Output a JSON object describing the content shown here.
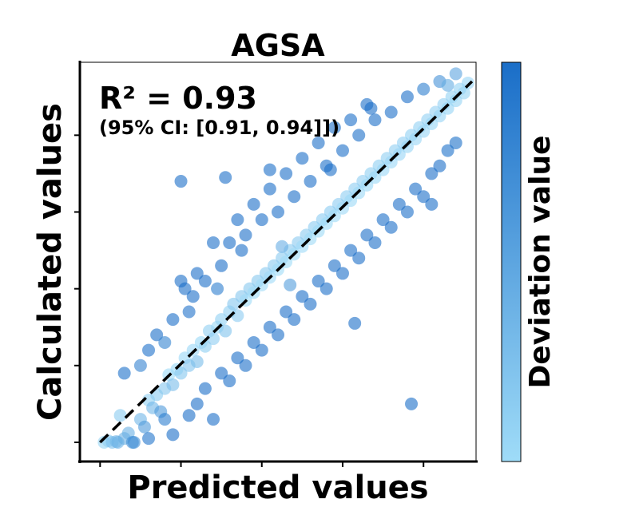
{
  "chart_data": {
    "type": "scatter",
    "title": "AGSA",
    "xlabel": "Predicted values",
    "ylabel": "Calculated values",
    "xlim": [
      -0.25,
      4.65
    ],
    "ylim": [
      -0.25,
      4.95
    ],
    "tick_labels_shown": false,
    "grid": false,
    "reference_line": {
      "style": "dashed",
      "color": "#000000",
      "from": [
        0,
        0
      ],
      "to": [
        4.6,
        4.7
      ]
    },
    "annotation": {
      "r2": "R² = 0.93",
      "ci": "(95% CI: [0.91, 0.94]])"
    },
    "colorbar": {
      "label": "Deviation value",
      "colors": [
        "#9fdcf8",
        "#1a6ec8"
      ]
    },
    "series": [
      {
        "color_scale": "deviation",
        "points": [
          [
            0.05,
            0.0
          ],
          [
            0.1,
            0.02
          ],
          [
            0.15,
            0.0
          ],
          [
            0.2,
            0.01
          ],
          [
            0.22,
            0.0
          ],
          [
            0.3,
            0.05
          ],
          [
            0.35,
            0.12
          ],
          [
            0.42,
            0.0
          ],
          [
            0.5,
            0.3
          ],
          [
            0.55,
            0.2
          ],
          [
            0.6,
            0.55
          ],
          [
            0.65,
            0.45
          ],
          [
            0.7,
            0.62
          ],
          [
            0.75,
            0.4
          ],
          [
            0.8,
            0.7
          ],
          [
            0.85,
            0.88
          ],
          [
            0.9,
            0.75
          ],
          [
            0.95,
            0.95
          ],
          [
            1.0,
            0.9
          ],
          [
            1.05,
            1.1
          ],
          [
            1.1,
            1.0
          ],
          [
            1.15,
            1.2
          ],
          [
            1.2,
            1.05
          ],
          [
            1.25,
            1.3
          ],
          [
            1.3,
            1.25
          ],
          [
            1.35,
            1.45
          ],
          [
            1.4,
            1.35
          ],
          [
            1.45,
            1.5
          ],
          [
            1.5,
            1.6
          ],
          [
            1.55,
            1.45
          ],
          [
            1.6,
            1.7
          ],
          [
            1.65,
            1.8
          ],
          [
            1.7,
            1.65
          ],
          [
            1.75,
            1.9
          ],
          [
            1.8,
            1.85
          ],
          [
            1.85,
            2.0
          ],
          [
            1.9,
            1.95
          ],
          [
            1.95,
            2.1
          ],
          [
            2.0,
            2.05
          ],
          [
            2.05,
            2.2
          ],
          [
            2.1,
            2.15
          ],
          [
            2.15,
            2.3
          ],
          [
            2.2,
            2.25
          ],
          [
            2.25,
            2.4
          ],
          [
            2.3,
            2.35
          ],
          [
            2.35,
            2.5
          ],
          [
            2.4,
            2.45
          ],
          [
            2.45,
            2.6
          ],
          [
            2.5,
            2.55
          ],
          [
            2.55,
            2.7
          ],
          [
            2.6,
            2.65
          ],
          [
            2.65,
            2.8
          ],
          [
            2.7,
            2.75
          ],
          [
            2.75,
            2.9
          ],
          [
            2.8,
            2.85
          ],
          [
            2.85,
            3.0
          ],
          [
            2.9,
            2.95
          ],
          [
            2.95,
            3.1
          ],
          [
            3.0,
            3.05
          ],
          [
            3.05,
            3.2
          ],
          [
            3.1,
            3.15
          ],
          [
            3.15,
            3.3
          ],
          [
            3.2,
            3.25
          ],
          [
            3.25,
            3.4
          ],
          [
            3.3,
            3.35
          ],
          [
            3.35,
            3.5
          ],
          [
            3.4,
            3.45
          ],
          [
            3.45,
            3.6
          ],
          [
            3.5,
            3.55
          ],
          [
            3.55,
            3.7
          ],
          [
            3.6,
            3.65
          ],
          [
            3.65,
            3.8
          ],
          [
            3.7,
            3.75
          ],
          [
            3.75,
            3.9
          ],
          [
            3.8,
            3.85
          ],
          [
            3.85,
            4.0
          ],
          [
            3.9,
            3.95
          ],
          [
            3.95,
            4.1
          ],
          [
            4.0,
            4.05
          ],
          [
            4.05,
            4.2
          ],
          [
            4.1,
            4.15
          ],
          [
            4.15,
            4.3
          ],
          [
            4.2,
            4.25
          ],
          [
            4.25,
            4.4
          ],
          [
            4.3,
            4.35
          ],
          [
            4.35,
            4.5
          ],
          [
            4.4,
            4.45
          ],
          [
            4.45,
            4.6
          ],
          [
            4.5,
            4.55
          ],
          [
            4.55,
            4.68
          ],
          [
            0.3,
            0.9
          ],
          [
            0.6,
            1.2
          ],
          [
            0.7,
            1.4
          ],
          [
            0.9,
            1.6
          ],
          [
            1.0,
            2.1
          ],
          [
            1.1,
            1.7
          ],
          [
            1.2,
            2.2
          ],
          [
            1.3,
            2.1
          ],
          [
            1.4,
            2.6
          ],
          [
            1.5,
            2.3
          ],
          [
            1.6,
            2.6
          ],
          [
            1.7,
            2.9
          ],
          [
            1.8,
            2.7
          ],
          [
            1.9,
            3.1
          ],
          [
            2.0,
            2.9
          ],
          [
            2.1,
            3.3
          ],
          [
            2.2,
            3.0
          ],
          [
            2.3,
            3.5
          ],
          [
            2.4,
            3.2
          ],
          [
            2.5,
            3.7
          ],
          [
            2.6,
            3.4
          ],
          [
            2.7,
            3.9
          ],
          [
            2.8,
            3.6
          ],
          [
            2.9,
            4.1
          ],
          [
            3.0,
            3.8
          ],
          [
            3.1,
            4.2
          ],
          [
            3.2,
            4.0
          ],
          [
            3.3,
            4.4
          ],
          [
            3.4,
            4.2
          ],
          [
            3.6,
            4.3
          ],
          [
            3.8,
            4.5
          ],
          [
            4.0,
            4.6
          ],
          [
            4.2,
            4.7
          ],
          [
            4.4,
            4.8
          ],
          [
            4.3,
            4.65
          ],
          [
            0.5,
            1.0
          ],
          [
            0.8,
            1.3
          ],
          [
            1.15,
            1.9
          ],
          [
            1.45,
            2.0
          ],
          [
            1.75,
            2.5
          ],
          [
            0.4,
            0.0
          ],
          [
            0.6,
            0.05
          ],
          [
            0.8,
            0.3
          ],
          [
            0.9,
            0.1
          ],
          [
            1.1,
            0.35
          ],
          [
            1.2,
            0.5
          ],
          [
            1.3,
            0.7
          ],
          [
            1.4,
            0.3
          ],
          [
            1.5,
            0.9
          ],
          [
            1.6,
            0.8
          ],
          [
            1.7,
            1.1
          ],
          [
            1.8,
            1.0
          ],
          [
            1.9,
            1.3
          ],
          [
            2.0,
            1.2
          ],
          [
            2.1,
            1.5
          ],
          [
            2.2,
            1.4
          ],
          [
            2.3,
            1.7
          ],
          [
            2.4,
            1.6
          ],
          [
            2.5,
            1.9
          ],
          [
            2.6,
            1.8
          ],
          [
            2.7,
            2.1
          ],
          [
            2.8,
            2.0
          ],
          [
            2.9,
            2.3
          ],
          [
            3.0,
            2.2
          ],
          [
            3.1,
            2.5
          ],
          [
            3.2,
            2.4
          ],
          [
            3.3,
            2.7
          ],
          [
            3.4,
            2.6
          ],
          [
            3.5,
            2.9
          ],
          [
            3.6,
            2.8
          ],
          [
            3.7,
            3.1
          ],
          [
            3.8,
            3.0
          ],
          [
            3.9,
            3.3
          ],
          [
            4.0,
            3.2
          ],
          [
            4.1,
            3.5
          ],
          [
            4.2,
            3.6
          ],
          [
            4.3,
            3.8
          ],
          [
            4.4,
            3.9
          ],
          [
            3.85,
            0.5
          ],
          [
            4.1,
            3.1
          ],
          [
            1.0,
            3.4
          ],
          [
            1.05,
            2.0
          ],
          [
            2.1,
            3.55
          ],
          [
            3.35,
            4.35
          ],
          [
            1.55,
            3.45
          ],
          [
            3.15,
            1.55
          ],
          [
            2.25,
            2.55
          ],
          [
            2.35,
            2.05
          ],
          [
            2.85,
            3.55
          ],
          [
            0.25,
            0.35
          ]
        ]
      }
    ]
  }
}
